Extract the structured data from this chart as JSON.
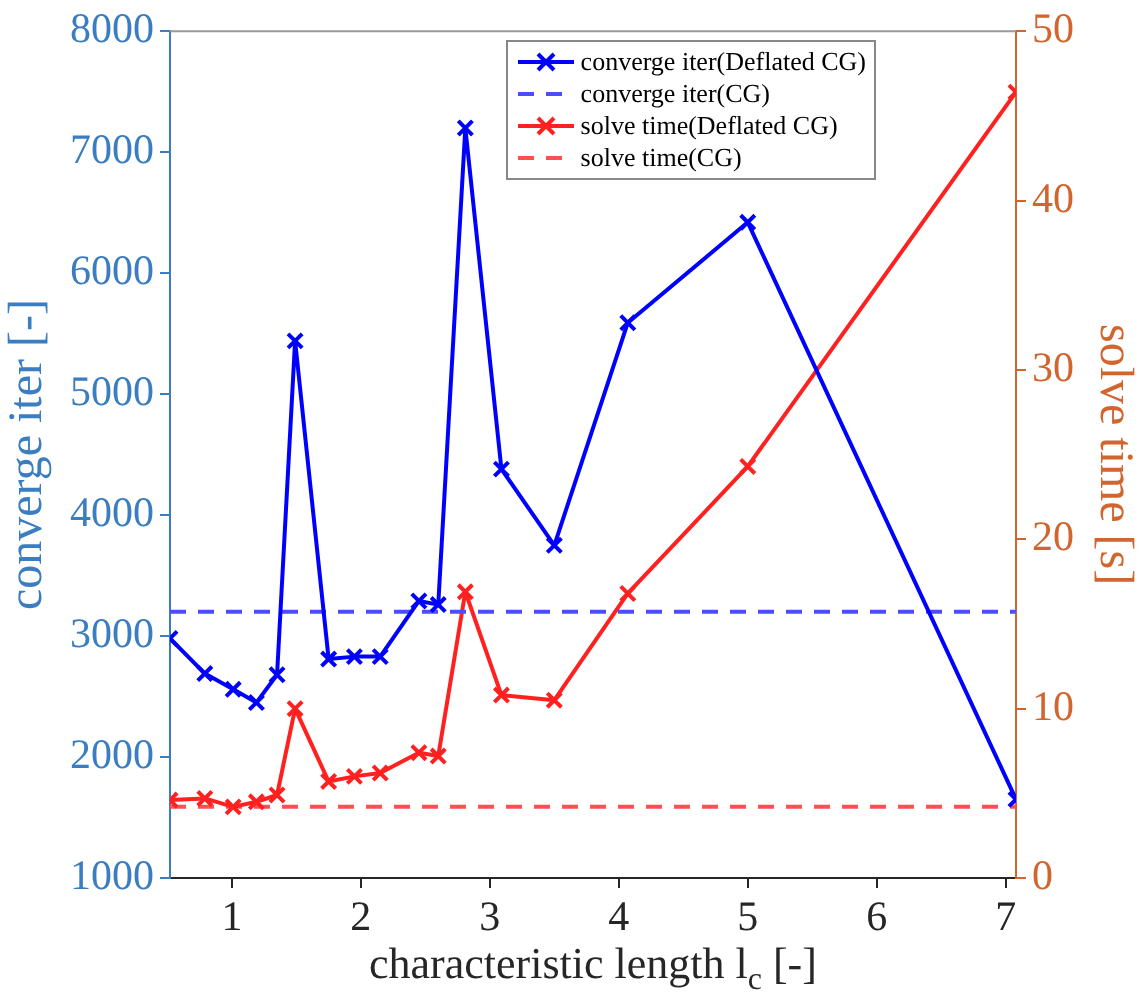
{
  "chart_data": {
    "type": "line",
    "xlabel": "characteristic length l$_{c}$ [-]",
    "ylabel": "converge iter [-]",
    "y2label": "solve time [s]",
    "xlim": [
      0.52,
      7.08
    ],
    "xticks": [
      1,
      2,
      3,
      4,
      5,
      6,
      7
    ],
    "ylim": [
      1000,
      8000
    ],
    "yticks": [
      1000,
      2000,
      3000,
      4000,
      5000,
      6000,
      7000,
      8000
    ],
    "y2lim": [
      0,
      50
    ],
    "y2ticks": [
      0,
      10,
      20,
      30,
      40,
      50
    ],
    "grid": false,
    "legend": "top right",
    "marker": "cross",
    "series": [
      {
        "name": "converge iter(Deflated CG)",
        "color": "#0000ff",
        "x": [
          0.52,
          0.79,
          1.01,
          1.19,
          1.35,
          1.49,
          1.75,
          1.95,
          2.15,
          2.45,
          2.6,
          2.81,
          3.09,
          3.5,
          4.07,
          5.0,
          7.08
        ],
        "values": [
          2980,
          2690,
          2560,
          2450,
          2680,
          5440,
          2810,
          2830,
          2830,
          3290,
          3260,
          7200,
          4380,
          3750,
          5590,
          6420,
          1650
        ]
      },
      {
        "name": "converge iter(CG)",
        "color": "#4d4dff",
        "line_style": "dashed",
        "marker": "none",
        "x": [
          0.52,
          7.08
        ],
        "values": [
          3200,
          3200
        ]
      },
      {
        "name": "solve time(Deflated CG)",
        "color": "#ff2020",
        "axis": "y2",
        "x": [
          0.52,
          0.79,
          1.01,
          1.19,
          1.35,
          1.49,
          1.75,
          1.95,
          2.15,
          2.45,
          2.6,
          2.81,
          3.09,
          3.5,
          4.07,
          5.0,
          7.08
        ],
        "values": [
          4.6,
          4.7,
          4.2,
          4.5,
          4.9,
          10.0,
          5.7,
          6.0,
          6.2,
          7.4,
          7.2,
          16.9,
          10.8,
          10.5,
          16.8,
          24.3,
          46.4
        ]
      },
      {
        "name": "solve time(CG)",
        "color": "#ff5050",
        "axis": "y2",
        "line_style": "dashed",
        "marker": "none",
        "x": [
          0.52,
          7.08
        ],
        "values": [
          4.2,
          4.2
        ]
      }
    ]
  }
}
